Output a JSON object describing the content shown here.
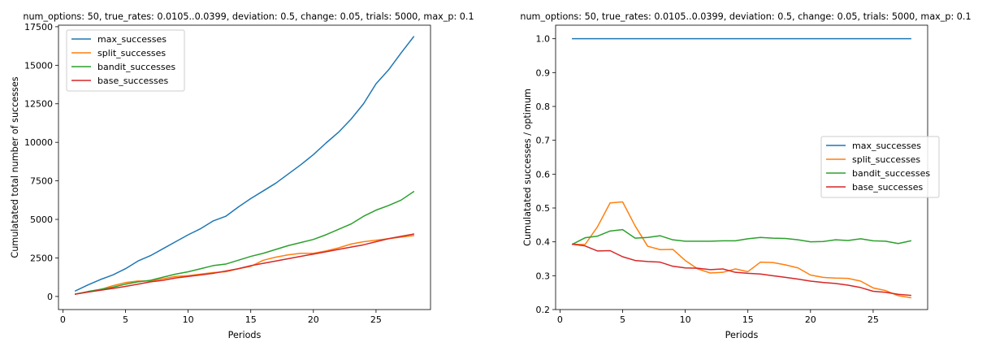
{
  "chart_data": [
    {
      "type": "line",
      "title": "num_options: 50, true_rates: 0.0105..0.0399, deviation: 0.5, change: 0.05, trials: 5000, max_p: 0.1",
      "xlabel": "Periods",
      "ylabel": "Cumulatated total number of successes",
      "xlim": [
        -0.35,
        29.35
      ],
      "ylim": [
        -850,
        17600
      ],
      "xticks": [
        0,
        5,
        10,
        15,
        20,
        25
      ],
      "xtick_labels": [
        "0",
        "5",
        "10",
        "15",
        "20",
        "25"
      ],
      "yticks": [
        0,
        2500,
        5000,
        7500,
        10000,
        12500,
        15000,
        17500
      ],
      "ytick_labels": [
        "0",
        "2500",
        "5000",
        "7500",
        "10000",
        "12500",
        "15000",
        "17500"
      ],
      "grid": false,
      "legend_position": "top-left",
      "x": [
        1,
        2,
        3,
        4,
        5,
        6,
        7,
        8,
        9,
        10,
        11,
        12,
        13,
        14,
        15,
        16,
        17,
        18,
        19,
        20,
        21,
        22,
        23,
        24,
        25,
        26,
        27,
        28
      ],
      "series": [
        {
          "name": "max_successes",
          "color": "#1f77b4",
          "values": [
            360,
            750,
            1100,
            1400,
            1800,
            2300,
            2650,
            3100,
            3550,
            4000,
            4400,
            4900,
            5200,
            5800,
            6350,
            6850,
            7350,
            7950,
            8550,
            9200,
            9950,
            10650,
            11500,
            12500,
            13800,
            14700,
            15800,
            16850
          ]
        },
        {
          "name": "split_successes",
          "color": "#ff7f0e",
          "values": [
            150,
            300,
            450,
            700,
            900,
            1000,
            1000,
            1150,
            1300,
            1350,
            1450,
            1550,
            1600,
            1800,
            1950,
            2350,
            2550,
            2700,
            2800,
            2800,
            2950,
            3150,
            3400,
            3550,
            3650,
            3750,
            3850,
            3950
          ]
        },
        {
          "name": "bandit_successes",
          "color": "#2ca02c",
          "values": [
            150,
            320,
            460,
            600,
            800,
            950,
            1050,
            1250,
            1450,
            1600,
            1800,
            2000,
            2100,
            2350,
            2600,
            2800,
            3050,
            3300,
            3500,
            3700,
            4000,
            4350,
            4700,
            5200,
            5600,
            5900,
            6250,
            6800
          ]
        },
        {
          "name": "base_successes",
          "color": "#d62728",
          "values": [
            150,
            280,
            400,
            520,
            650,
            800,
            950,
            1050,
            1200,
            1300,
            1400,
            1500,
            1650,
            1800,
            2000,
            2150,
            2300,
            2450,
            2600,
            2750,
            2900,
            3050,
            3200,
            3350,
            3550,
            3750,
            3900,
            4050
          ]
        }
      ]
    },
    {
      "type": "line",
      "title": "num_options: 50, true_rates: 0.0105..0.0399, deviation: 0.5, change: 0.05, trials: 5000, max_p: 0.1",
      "xlabel": "Periods",
      "ylabel": "Cumulatated successes / optimum",
      "xlim": [
        -0.35,
        29.35
      ],
      "ylim": [
        0.2,
        1.04
      ],
      "xticks": [
        0,
        5,
        10,
        15,
        20,
        25
      ],
      "xtick_labels": [
        "0",
        "5",
        "10",
        "15",
        "20",
        "25"
      ],
      "yticks": [
        0.2,
        0.3,
        0.4,
        0.5,
        0.6,
        0.7,
        0.8,
        0.9,
        1.0
      ],
      "ytick_labels": [
        "0.2",
        "0.3",
        "0.4",
        "0.5",
        "0.6",
        "0.7",
        "0.8",
        "0.9",
        "1.0"
      ],
      "grid": false,
      "legend_position": "center-right",
      "x": [
        1,
        2,
        3,
        4,
        5,
        6,
        7,
        8,
        9,
        10,
        11,
        12,
        13,
        14,
        15,
        16,
        17,
        18,
        19,
        20,
        21,
        22,
        23,
        24,
        25,
        26,
        27,
        28
      ],
      "series": [
        {
          "name": "max_successes",
          "color": "#1f77b4",
          "values": [
            1.0,
            1.0,
            1.0,
            1.0,
            1.0,
            1.0,
            1.0,
            1.0,
            1.0,
            1.0,
            1.0,
            1.0,
            1.0,
            1.0,
            1.0,
            1.0,
            1.0,
            1.0,
            1.0,
            1.0,
            1.0,
            1.0,
            1.0,
            1.0,
            1.0,
            1.0,
            1.0,
            1.0
          ]
        },
        {
          "name": "split_successes",
          "color": "#ff7f0e",
          "values": [
            0.393,
            0.392,
            0.445,
            0.515,
            0.518,
            0.447,
            0.387,
            0.377,
            0.378,
            0.345,
            0.32,
            0.308,
            0.31,
            0.32,
            0.312,
            0.34,
            0.339,
            0.332,
            0.323,
            0.302,
            0.295,
            0.293,
            0.292,
            0.284,
            0.264,
            0.256,
            0.241,
            0.235
          ]
        },
        {
          "name": "bandit_successes",
          "color": "#2ca02c",
          "values": [
            0.393,
            0.412,
            0.417,
            0.432,
            0.436,
            0.411,
            0.413,
            0.418,
            0.406,
            0.402,
            0.402,
            0.402,
            0.403,
            0.403,
            0.409,
            0.413,
            0.411,
            0.41,
            0.406,
            0.4,
            0.401,
            0.406,
            0.404,
            0.409,
            0.403,
            0.402,
            0.395,
            0.403
          ]
        },
        {
          "name": "base_successes",
          "color": "#d62728",
          "values": [
            0.393,
            0.388,
            0.373,
            0.374,
            0.356,
            0.345,
            0.342,
            0.34,
            0.328,
            0.323,
            0.322,
            0.318,
            0.32,
            0.31,
            0.307,
            0.305,
            0.3,
            0.295,
            0.29,
            0.284,
            0.28,
            0.277,
            0.272,
            0.265,
            0.254,
            0.251,
            0.245,
            0.242
          ]
        }
      ]
    }
  ]
}
